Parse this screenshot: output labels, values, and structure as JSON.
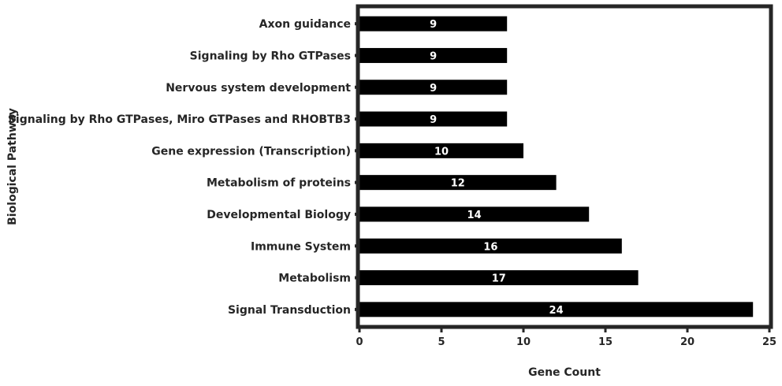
{
  "chart_data": {
    "type": "bar",
    "orientation": "horizontal",
    "categories": [
      "Axon guidance",
      "Signaling by Rho GTPases",
      "Nervous system development",
      "Signaling by Rho GTPases, Miro GTPases and RHOBTB3",
      "Gene expression (Transcription)",
      "Metabolism of proteins",
      "Developmental Biology",
      "Immune System",
      "Metabolism",
      "Signal Transduction"
    ],
    "values": [
      9,
      9,
      9,
      9,
      10,
      12,
      14,
      16,
      17,
      24
    ],
    "xlabel": "Gene Count",
    "ylabel": "Biological Pathway",
    "xlim": [
      0,
      25
    ],
    "xticks": [
      0,
      5,
      10,
      15,
      20,
      25
    ],
    "grid": false,
    "bar_color": "#000000",
    "label_color": "#ffffff"
  }
}
